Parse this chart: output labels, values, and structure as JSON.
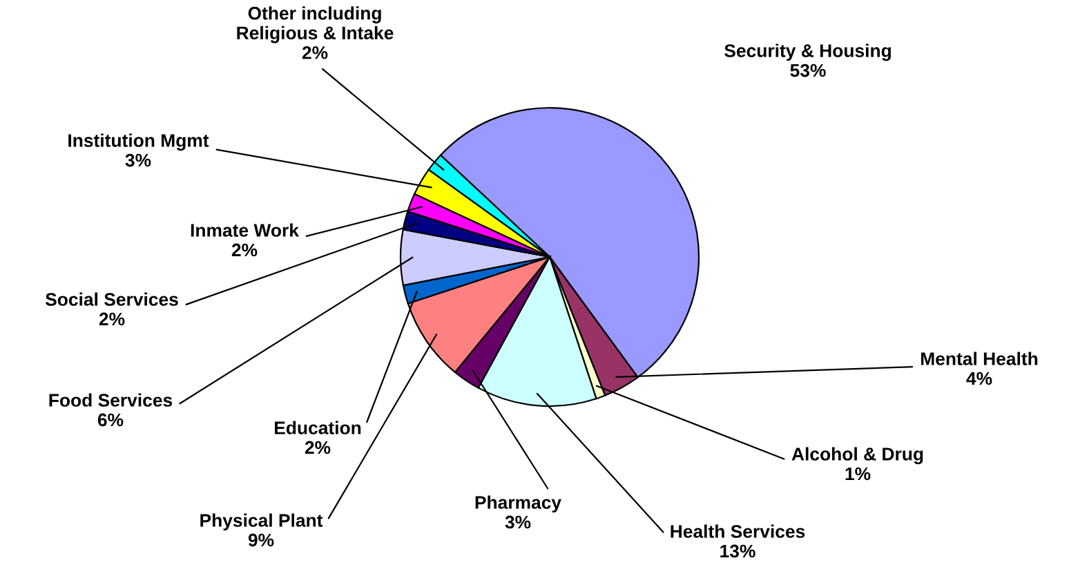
{
  "chart_data": {
    "type": "pie",
    "categories": [
      "Security & Housing",
      "Mental Health",
      "Alcohol & Drug",
      "Health Services",
      "Pharmacy",
      "Physical Plant",
      "Education",
      "Food Services",
      "Social Services",
      "Inmate Work",
      "Institution Mgmt",
      "Other including\nReligious & Intake"
    ],
    "values": [
      53,
      4,
      1,
      13,
      3,
      9,
      2,
      6,
      2,
      2,
      3,
      2
    ],
    "value_labels": [
      "53%",
      "4%",
      "1%",
      "13%",
      "3%",
      "9%",
      "2%",
      "6%",
      "2%",
      "2%",
      "3%",
      "2%"
    ],
    "colors": [
      "#9999ff",
      "#993366",
      "#ffffcc",
      "#ccffff",
      "#660066",
      "#ff8080",
      "#0066cc",
      "#ccccff",
      "#000080",
      "#ff00ff",
      "#ffff00",
      "#00ffff"
    ],
    "legend": false
  }
}
